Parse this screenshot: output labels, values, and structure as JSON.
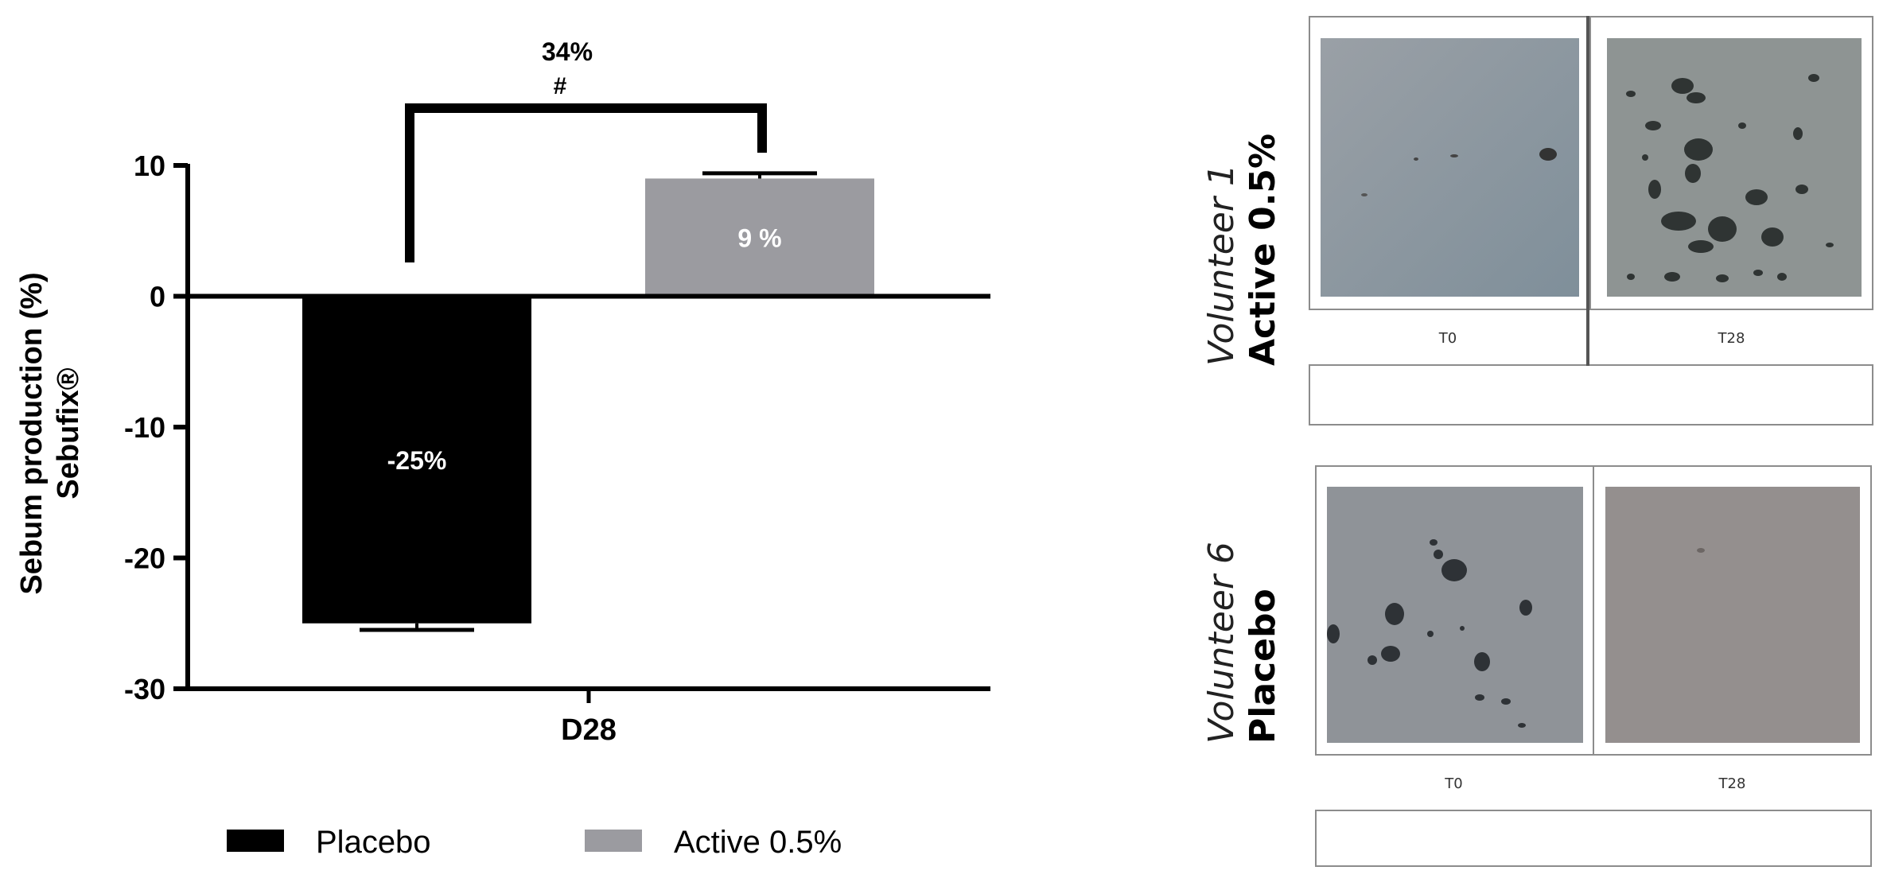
{
  "chart_data": {
    "type": "bar",
    "categories": [
      "D28"
    ],
    "series": [
      {
        "name": "Placebo",
        "values": [
          -25
        ],
        "error": [
          0.5
        ],
        "color": "#000000",
        "label": "-25%"
      },
      {
        "name": "Active 0.5%",
        "values": [
          9
        ],
        "error": [
          0.4
        ],
        "color": "#9b9ba0",
        "label": "9 %"
      }
    ],
    "ylabel_line1": "Sebum production (%)",
    "ylabel_line2": "Sebufix®",
    "xlabel": "",
    "ylim": [
      -30,
      10
    ],
    "yticks": [
      10,
      0,
      -10,
      -20,
      -30
    ],
    "ytick_labels": [
      "10",
      "0",
      "-10",
      "-20",
      "-30"
    ],
    "annotation": {
      "value": "34%",
      "marker": "#"
    },
    "legend_position": "bottom"
  },
  "images": {
    "panel1": {
      "volunteer": "Volunteer 1",
      "group": "Active 0.5%",
      "labels": [
        "T0",
        "T28"
      ]
    },
    "panel2": {
      "volunteer": "Volunteer 6",
      "group": "Placebo",
      "labels": [
        "T0",
        "T28"
      ]
    }
  }
}
